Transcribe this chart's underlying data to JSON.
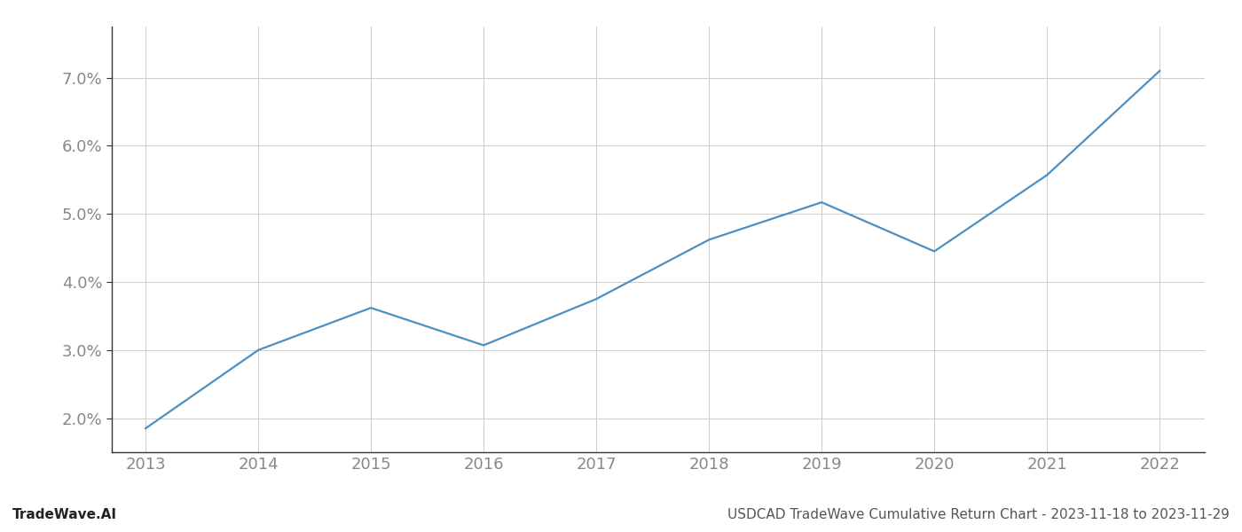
{
  "x_years": [
    2013,
    2014,
    2015,
    2016,
    2017,
    2018,
    2019,
    2020,
    2021,
    2022
  ],
  "y_values": [
    1.85,
    3.0,
    3.62,
    3.07,
    3.75,
    4.62,
    5.17,
    4.45,
    5.57,
    7.1
  ],
  "line_color": "#4a90c4",
  "line_width": 1.6,
  "ylim_min": 1.5,
  "ylim_max": 7.75,
  "yticks": [
    2.0,
    3.0,
    4.0,
    5.0,
    6.0,
    7.0
  ],
  "xticks": [
    2013,
    2014,
    2015,
    2016,
    2017,
    2018,
    2019,
    2020,
    2021,
    2022
  ],
  "footer_left": "TradeWave.AI",
  "footer_right": "USDCAD TradeWave Cumulative Return Chart - 2023-11-18 to 2023-11-29",
  "bg_color": "#ffffff",
  "grid_color": "#cccccc",
  "tick_label_color": "#888888",
  "footer_color": "#555555",
  "font_size_ticks": 13,
  "font_size_footer": 11,
  "xlim_min": 2012.7,
  "xlim_max": 2022.4
}
